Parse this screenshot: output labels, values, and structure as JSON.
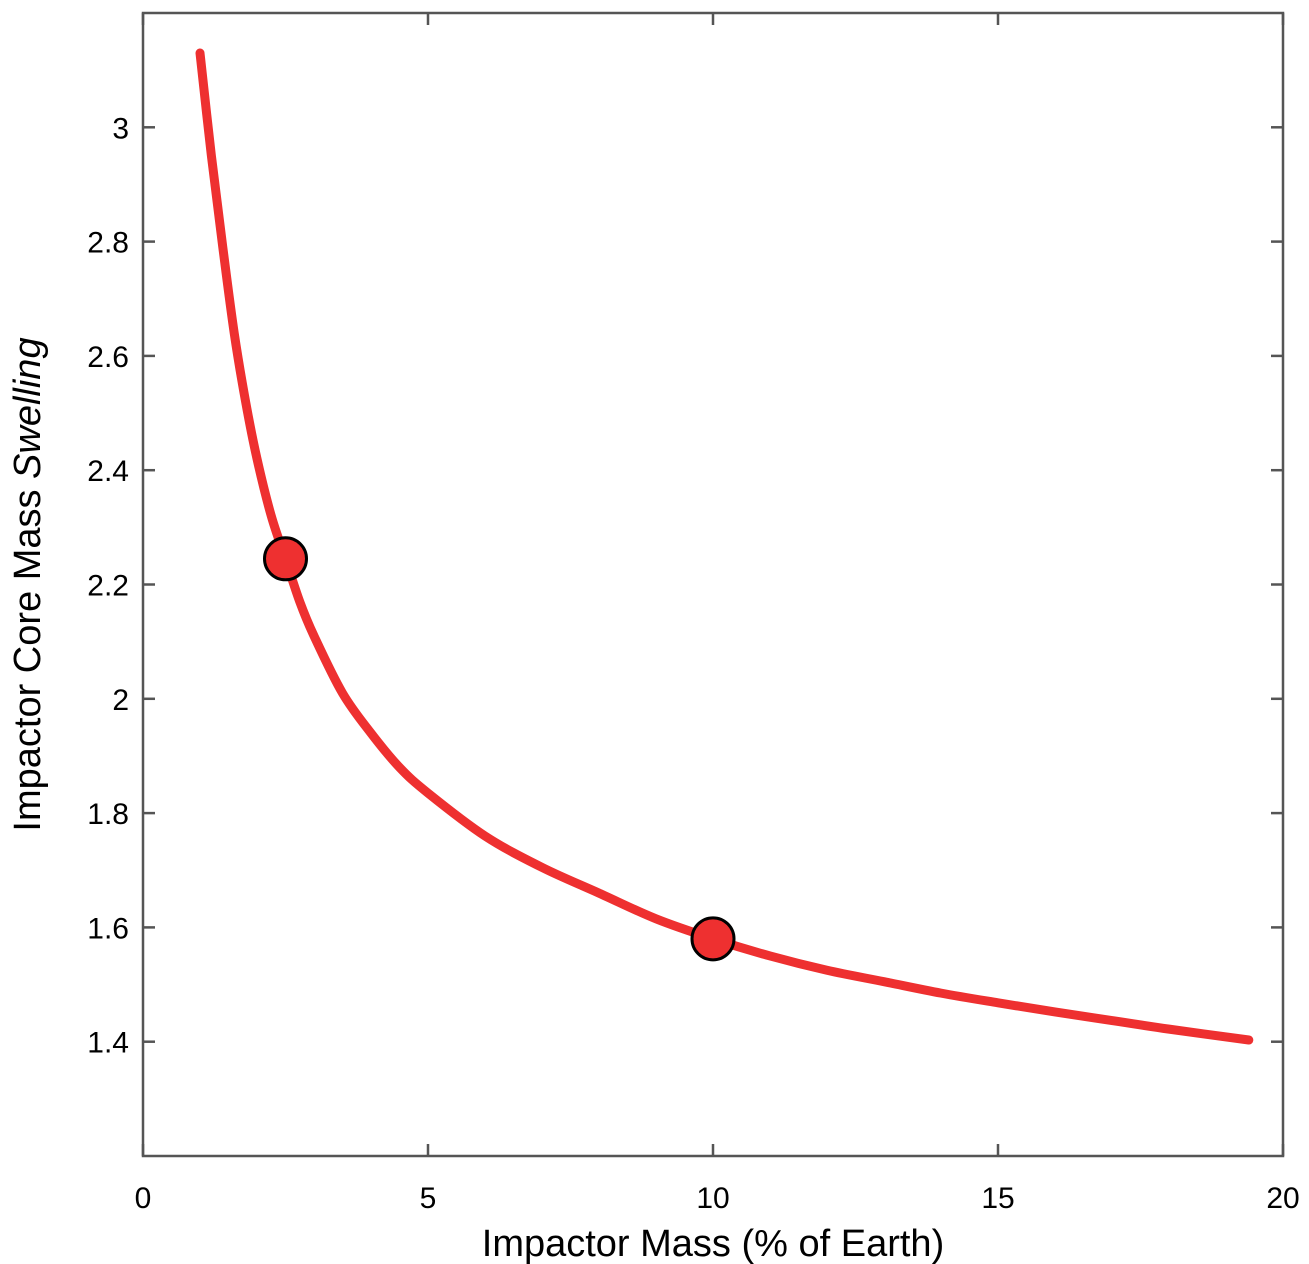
{
  "chart_data": {
    "type": "line",
    "xlabel": "Impactor Mass (% of Earth)",
    "ylabel": {
      "prefix": "Impactor Core Mass ",
      "emphasis": "Swelling"
    },
    "xlim": [
      0,
      20
    ],
    "ylim": [
      1.2,
      3.2
    ],
    "xticks": [
      0,
      5,
      10,
      15,
      20
    ],
    "yticks": [
      1.4,
      1.6,
      1.8,
      2,
      2.2,
      2.4,
      2.6,
      2.8,
      3
    ],
    "xtick_labels": [
      "0",
      "5",
      "10",
      "15",
      "20"
    ],
    "ytick_labels": [
      "1.4",
      "1.6",
      "1.8",
      "2",
      "2.2",
      "2.4",
      "2.6",
      "2.8",
      "3"
    ],
    "grid": false,
    "series": [
      {
        "color": "#ee3030",
        "x": [
          1.0,
          1.2,
          1.4,
          1.6,
          1.8,
          2.0,
          2.25,
          2.5,
          2.75,
          3.0,
          3.5,
          4.0,
          4.5,
          5.0,
          6.0,
          7.0,
          8.0,
          9.0,
          10.0,
          11.0,
          12.0,
          13.0,
          14.0,
          15.0,
          16.0,
          17.0,
          18.0,
          19.4
        ],
        "y": [
          3.13,
          2.95,
          2.79,
          2.64,
          2.52,
          2.42,
          2.32,
          2.245,
          2.17,
          2.11,
          2.01,
          1.94,
          1.88,
          1.835,
          1.76,
          1.705,
          1.66,
          1.615,
          1.58,
          1.55,
          1.525,
          1.505,
          1.485,
          1.468,
          1.452,
          1.437,
          1.422,
          1.403
        ]
      }
    ],
    "markers": [
      {
        "x": 2.5,
        "y": 2.245,
        "color": "#ee3030"
      },
      {
        "x": 10.0,
        "y": 1.58,
        "color": "#ee3030"
      }
    ]
  }
}
